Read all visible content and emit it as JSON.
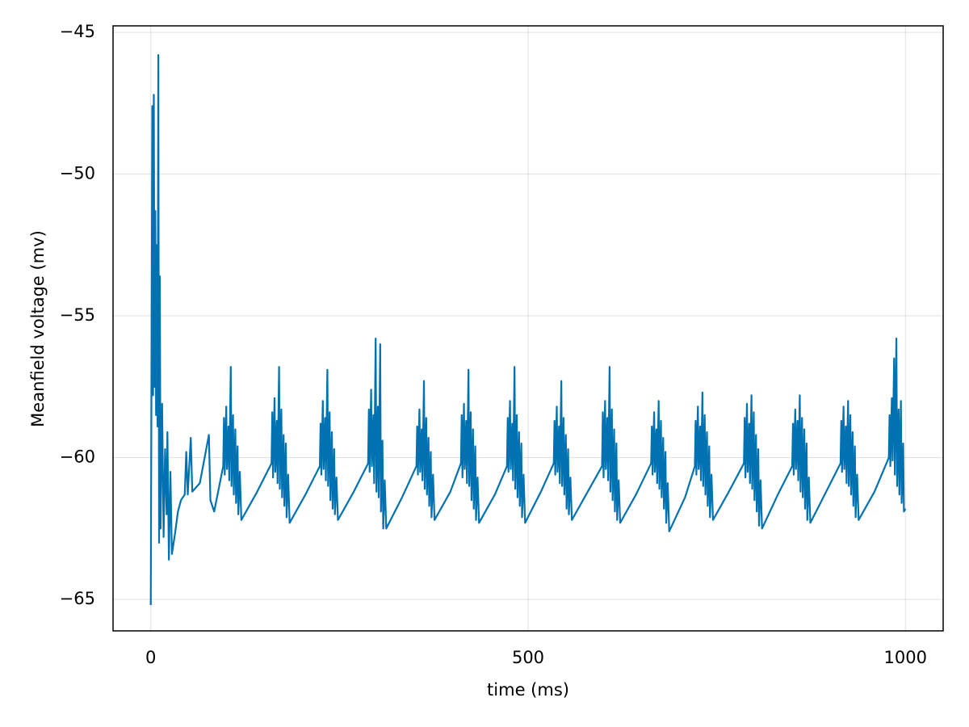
{
  "chart_data": {
    "type": "line",
    "xlabel": "time (ms)",
    "ylabel": "Meanfield voltage (mv)",
    "color": "#0072b2",
    "grid": true,
    "xlim": [
      -50,
      1050
    ],
    "ylim": [
      -66.11,
      -44.77
    ],
    "xticks": [
      0,
      500,
      1000
    ],
    "yticks": [
      {
        "value": -65,
        "label": "−65"
      },
      {
        "value": -60,
        "label": "−60"
      },
      {
        "value": -55,
        "label": "−55"
      },
      {
        "value": -50,
        "label": "−50"
      },
      {
        "value": -45,
        "label": "−45"
      }
    ],
    "x": [
      0,
      2,
      3,
      4,
      5,
      6,
      7,
      8,
      9,
      10,
      11,
      12,
      13,
      15,
      17,
      19,
      21,
      22,
      24,
      26,
      28,
      32,
      36,
      40,
      45,
      47,
      49,
      53,
      55,
      65,
      77,
      79,
      84,
      96,
      97,
      98,
      100,
      101,
      103,
      104,
      106,
      107,
      109,
      110,
      112,
      113,
      115,
      116,
      118,
      120,
      141,
      160,
      161,
      162,
      164,
      165,
      167,
      168,
      170,
      171,
      173,
      174,
      176,
      177,
      179,
      180,
      182,
      184,
      205,
      224,
      225,
      226,
      228,
      229,
      231,
      232,
      234,
      235,
      237,
      238,
      240,
      241,
      243,
      244,
      246,
      248,
      269,
      288,
      289,
      290,
      292,
      293,
      295,
      296,
      298,
      299,
      301,
      302,
      304,
      305,
      307,
      308,
      310,
      312,
      333,
      352,
      353,
      354,
      356,
      357,
      359,
      360,
      362,
      363,
      365,
      366,
      368,
      369,
      371,
      372,
      374,
      376,
      397,
      411,
      412,
      413,
      415,
      416,
      418,
      419,
      421,
      422,
      424,
      425,
      427,
      428,
      430,
      431,
      433,
      435,
      456,
      472,
      473,
      474,
      476,
      477,
      479,
      480,
      482,
      483,
      485,
      486,
      488,
      489,
      491,
      492,
      494,
      496,
      517,
      534,
      535,
      536,
      538,
      539,
      541,
      542,
      544,
      545,
      547,
      548,
      550,
      551,
      553,
      554,
      556,
      558,
      579,
      598,
      599,
      600,
      602,
      603,
      605,
      606,
      608,
      609,
      611,
      612,
      614,
      615,
      617,
      618,
      620,
      622,
      643,
      663,
      664,
      665,
      667,
      668,
      670,
      671,
      673,
      674,
      676,
      677,
      679,
      680,
      682,
      683,
      685,
      687,
      708,
      721,
      722,
      723,
      725,
      726,
      728,
      729,
      731,
      732,
      734,
      735,
      737,
      738,
      740,
      741,
      743,
      745,
      766,
      786,
      787,
      788,
      790,
      791,
      793,
      794,
      796,
      797,
      799,
      800,
      802,
      803,
      805,
      806,
      808,
      810,
      831,
      850,
      851,
      852,
      854,
      855,
      857,
      858,
      860,
      861,
      863,
      864,
      866,
      867,
      869,
      870,
      872,
      874,
      895,
      914,
      915,
      916,
      918,
      919,
      921,
      922,
      924,
      925,
      927,
      928,
      930,
      931,
      933,
      934,
      936,
      938,
      959,
      978,
      979,
      980,
      982,
      983,
      985,
      986,
      988,
      989,
      991,
      992,
      994,
      995,
      997,
      998,
      1000
    ],
    "values": [
      -65.2,
      -47.6,
      -57.8,
      -47.2,
      -57.5,
      -51.3,
      -58.5,
      -52.5,
      -58.9,
      -45.8,
      -63.0,
      -53.6,
      -62.5,
      -58.1,
      -62.8,
      -59.7,
      -62.0,
      -59.1,
      -63.6,
      -60.5,
      -63.4,
      -62.7,
      -61.9,
      -61.5,
      -61.3,
      -59.8,
      -61.3,
      -59.3,
      -61.2,
      -60.9,
      -59.2,
      -61.5,
      -61.9,
      -60.3,
      -58.6,
      -60.6,
      -58.2,
      -60.4,
      -58.9,
      -60.8,
      -56.8,
      -61.0,
      -58.5,
      -61.3,
      -59.0,
      -61.6,
      -59.6,
      -62.0,
      -60.5,
      -62.2,
      -61.2,
      -60.2,
      -58.4,
      -60.7,
      -57.9,
      -60.5,
      -58.7,
      -60.9,
      -56.8,
      -61.1,
      -58.3,
      -61.4,
      -59.2,
      -61.7,
      -59.5,
      -62.1,
      -60.6,
      -62.3,
      -61.3,
      -60.3,
      -58.8,
      -60.6,
      -58.0,
      -60.4,
      -58.6,
      -60.8,
      -56.9,
      -61.0,
      -58.4,
      -61.5,
      -59.1,
      -61.8,
      -59.7,
      -62.0,
      -60.7,
      -62.2,
      -61.2,
      -60.2,
      -58.3,
      -60.5,
      -57.6,
      -60.3,
      -58.5,
      -60.9,
      -55.8,
      -61.2,
      -58.2,
      -61.4,
      -56.0,
      -61.9,
      -59.4,
      -62.5,
      -60.8,
      -62.5,
      -61.4,
      -60.3,
      -58.9,
      -60.6,
      -58.3,
      -60.5,
      -59.0,
      -60.8,
      -57.3,
      -61.1,
      -58.6,
      -61.3,
      -59.3,
      -61.7,
      -59.8,
      -62.1,
      -60.6,
      -62.2,
      -61.2,
      -60.2,
      -58.5,
      -60.7,
      -58.1,
      -60.4,
      -58.7,
      -60.9,
      -56.9,
      -61.0,
      -58.4,
      -61.5,
      -59.0,
      -61.8,
      -59.6,
      -62.2,
      -60.7,
      -62.3,
      -61.3,
      -60.3,
      -58.6,
      -60.5,
      -58.0,
      -60.4,
      -58.8,
      -60.8,
      -56.8,
      -61.1,
      -58.5,
      -61.4,
      -59.1,
      -61.7,
      -59.5,
      -62.1,
      -60.6,
      -62.3,
      -61.2,
      -60.2,
      -58.7,
      -60.6,
      -58.2,
      -60.5,
      -58.9,
      -60.9,
      -57.3,
      -61.0,
      -58.6,
      -61.3,
      -59.2,
      -61.8,
      -59.7,
      -62.0,
      -60.7,
      -62.2,
      -61.2,
      -60.3,
      -58.4,
      -60.7,
      -58.0,
      -60.4,
      -58.6,
      -60.8,
      -56.8,
      -61.2,
      -58.3,
      -61.5,
      -59.0,
      -61.9,
      -59.5,
      -62.2,
      -60.8,
      -62.3,
      -61.3,
      -60.2,
      -58.9,
      -60.6,
      -58.4,
      -60.5,
      -59.0,
      -60.9,
      -58.0,
      -61.1,
      -58.7,
      -61.4,
      -59.3,
      -61.8,
      -59.8,
      -62.3,
      -60.9,
      -62.6,
      -61.4,
      -60.3,
      -58.7,
      -60.6,
      -58.2,
      -60.4,
      -58.9,
      -60.8,
      -57.7,
      -61.0,
      -58.5,
      -61.3,
      -59.1,
      -61.7,
      -59.6,
      -62.1,
      -60.6,
      -62.2,
      -61.2,
      -60.2,
      -58.6,
      -60.7,
      -58.1,
      -60.5,
      -58.8,
      -60.9,
      -57.8,
      -61.1,
      -58.4,
      -61.5,
      -59.2,
      -61.9,
      -59.7,
      -62.4,
      -60.8,
      -62.5,
      -61.3,
      -60.3,
      -58.8,
      -60.6,
      -58.3,
      -60.4,
      -58.7,
      -60.8,
      -57.8,
      -61.2,
      -58.6,
      -61.4,
      -59.0,
      -61.8,
      -59.5,
      -62.2,
      -60.7,
      -62.3,
      -61.2,
      -60.2,
      -58.7,
      -60.5,
      -58.2,
      -60.4,
      -58.9,
      -60.9,
      -58.0,
      -61.0,
      -58.5,
      -61.3,
      -59.1,
      -61.7,
      -59.6,
      -62.1,
      -60.6,
      -62.2,
      -61.2,
      -60.0,
      -58.5,
      -60.3,
      -57.9,
      -60.1,
      -56.5,
      -60.6,
      -55.8,
      -61.0,
      -58.3,
      -61.3,
      -58.0,
      -61.6,
      -59.5,
      -61.9,
      -61.8
    ]
  }
}
